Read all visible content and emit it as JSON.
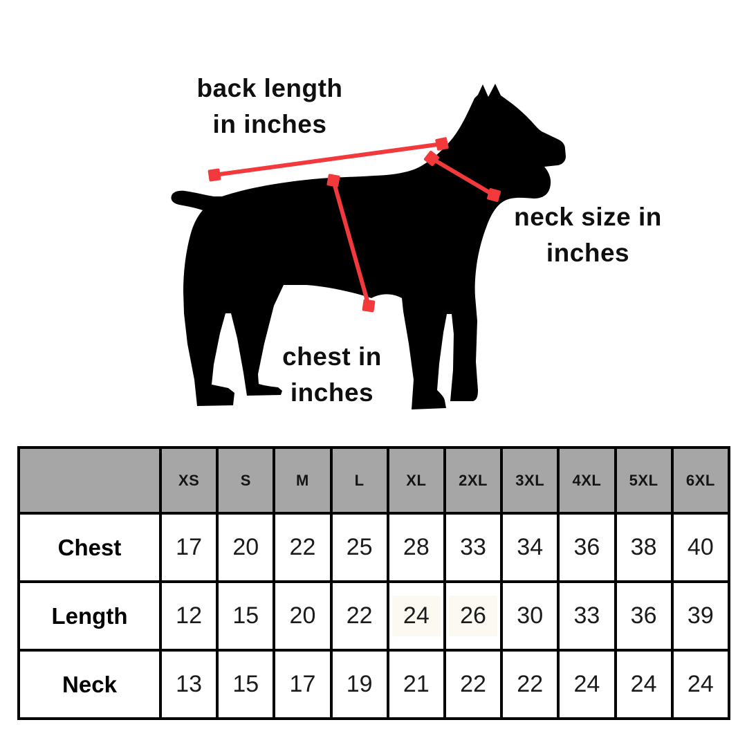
{
  "figure": {
    "labels": {
      "back_length_line1": "back length",
      "back_length_line2": "in inches",
      "neck_line1": "neck size in",
      "neck_line2": "inches",
      "chest_line1": "chest in",
      "chest_line2": "inches"
    },
    "silhouette": "cane-corso-dog-standing-side-view",
    "silhouette_color": "#000000",
    "accent_color": "#f23a3c"
  },
  "chart_data": {
    "type": "table",
    "columns": [
      "XS",
      "S",
      "M",
      "L",
      "XL",
      "2XL",
      "3XL",
      "4XL",
      "5XL",
      "6XL"
    ],
    "rows": [
      {
        "label": "Chest",
        "values": [
          "17",
          "20",
          "22",
          "25",
          "28",
          "33",
          "34",
          "36",
          "38",
          "40"
        ]
      },
      {
        "label": "Length",
        "values": [
          "12",
          "15",
          "20",
          "22",
          "24",
          "26",
          "30",
          "33",
          "36",
          "39"
        ]
      },
      {
        "label": "Neck",
        "values": [
          "13",
          "15",
          "17",
          "19",
          "21",
          "22",
          "22",
          "24",
          "24",
          "24"
        ]
      }
    ],
    "header_bg": "#a6a6a6",
    "border_color": "#000000",
    "highlight_cells": [
      {
        "row": 1,
        "col": 4
      },
      {
        "row": 1,
        "col": 5
      }
    ]
  }
}
